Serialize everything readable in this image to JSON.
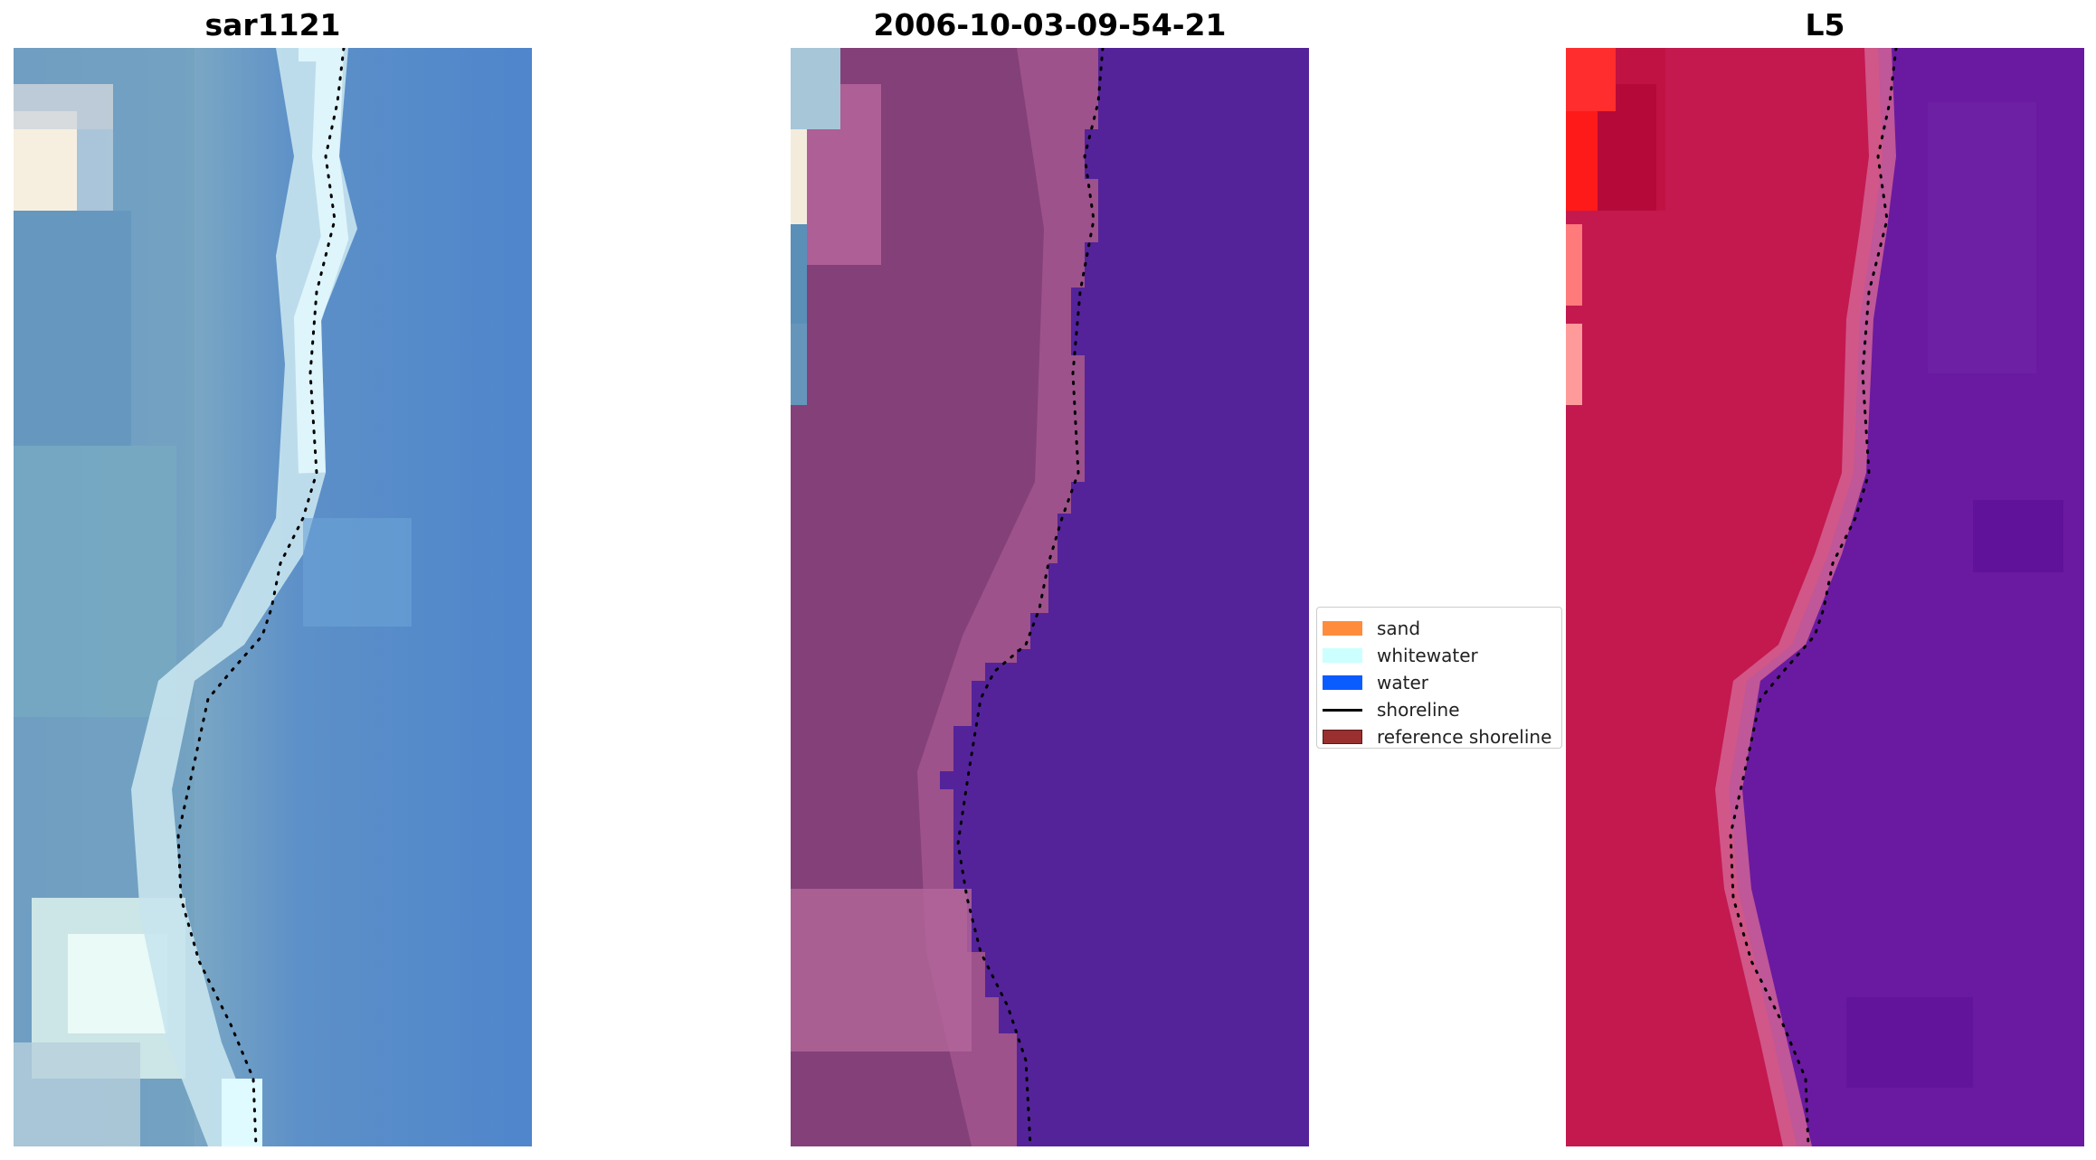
{
  "panels": [
    {
      "title": "sar1121"
    },
    {
      "title": "2006-10-03-09-54-21"
    },
    {
      "title": "L5"
    }
  ],
  "legend": {
    "items": [
      {
        "label": "sand",
        "color": "#ff8c3c",
        "kind": "patch"
      },
      {
        "label": "whitewater",
        "color": "#ccffff",
        "kind": "patch"
      },
      {
        "label": "water",
        "color": "#0a5cff",
        "kind": "patch"
      },
      {
        "label": "shoreline",
        "color": "#000000",
        "kind": "line"
      },
      {
        "label": "reference shoreline",
        "color": "#9a2f2f",
        "kind": "patch"
      }
    ]
  }
}
